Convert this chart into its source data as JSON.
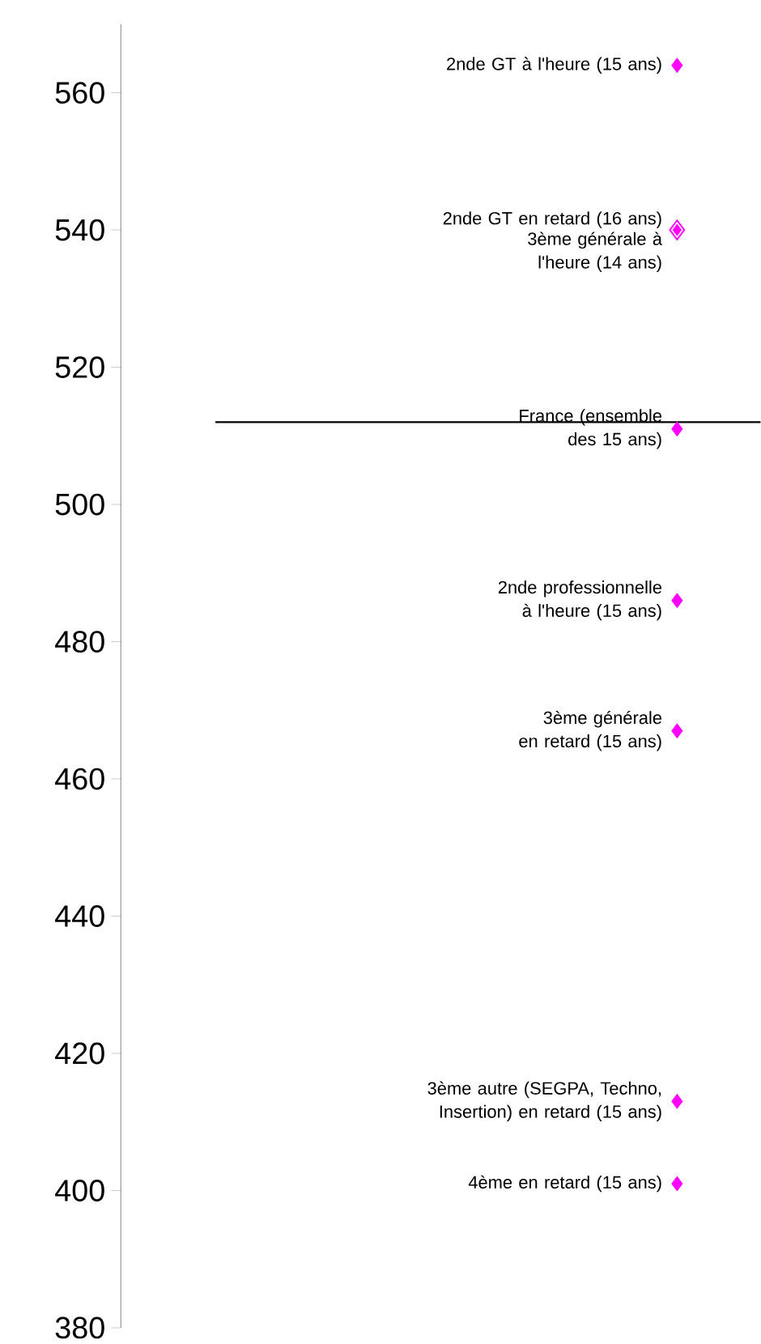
{
  "chart_data": {
    "type": "scatter",
    "categories": [
      null
    ],
    "marker": "diamond",
    "ylim": [
      380,
      570
    ],
    "yticks": [
      380,
      400,
      420,
      440,
      460,
      480,
      500,
      520,
      540,
      560
    ],
    "tick_labels": "y",
    "ref_lines": [
      {
        "axis": "y",
        "value": 512,
        "color": "#000000"
      }
    ],
    "series": [
      {
        "name": "2nde GT à l'heure (15 ans)",
        "color": "#ff00ff",
        "values": [
          564
        ]
      },
      {
        "name": "2nde GT en retard (16 ans)",
        "color": "#ff00ff",
        "values": [
          540
        ]
      },
      {
        "name": "3ème générale à l'heure (14 ans)",
        "color": "#ff00ff",
        "values": [
          540
        ]
      },
      {
        "name": "France (ensemble des 15 ans)",
        "color": "#ff00ff",
        "values": [
          511
        ]
      },
      {
        "name": "2nde professionnelle à l'heure (15 ans)",
        "color": "#ff00ff",
        "values": [
          486
        ]
      },
      {
        "name": "3ème générale en retard (15 ans)",
        "color": "#ff00ff",
        "values": [
          467
        ]
      },
      {
        "name": "3ème autre (SEGPA, Techno, Insertion) en retard (15 ans)",
        "color": "#ff00ff",
        "values": [
          413
        ]
      },
      {
        "name": "4ème en retard (15 ans)",
        "color": "#ff00ff",
        "values": [
          401
        ]
      }
    ]
  }
}
